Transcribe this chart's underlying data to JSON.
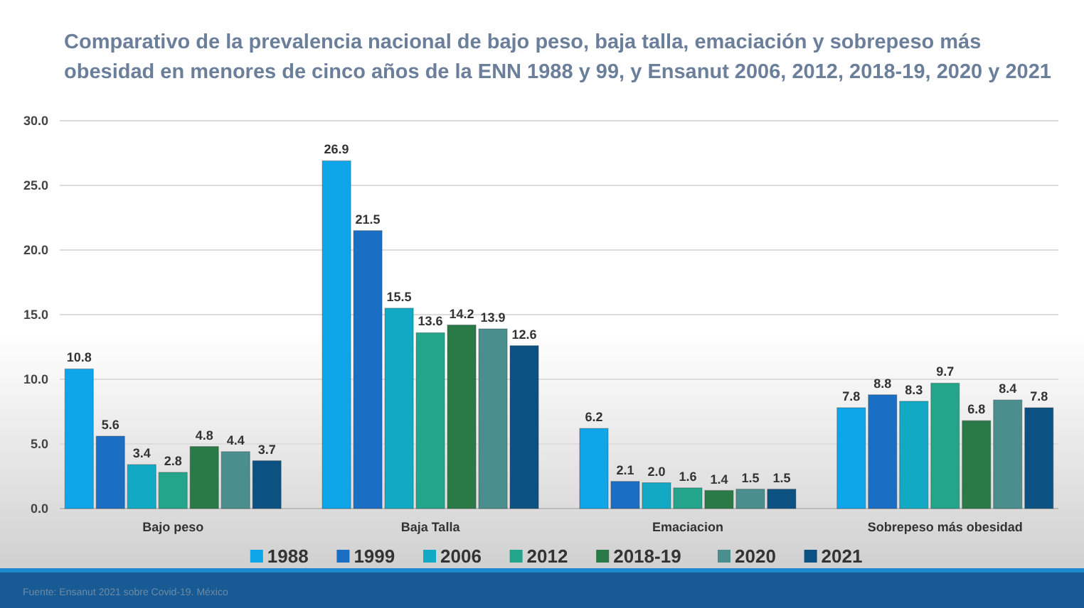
{
  "chart_data": {
    "type": "bar",
    "title": "Comparativo de la prevalencia nacional de bajo peso, baja talla, emaciación y sobrepeso más obesidad en menores de cinco años de la ENN 1988 y 99, y Ensanut 2006, 2012, 2018-19, 2020 y 2021",
    "categories": [
      "Bajo peso",
      "Baja Talla",
      "Emaciacion",
      "Sobrepeso más obesidad"
    ],
    "series": [
      {
        "name": "1988",
        "color": "#0ea5e9",
        "values": [
          10.8,
          26.9,
          6.2,
          7.8
        ]
      },
      {
        "name": "1999",
        "color": "#1a6fc4",
        "values": [
          5.6,
          21.5,
          2.1,
          8.8
        ]
      },
      {
        "name": "2006",
        "color": "#12a9c4",
        "values": [
          3.4,
          15.5,
          2.0,
          8.3
        ]
      },
      {
        "name": "2012",
        "color": "#22a58a",
        "values": [
          2.8,
          13.6,
          1.6,
          9.7
        ]
      },
      {
        "name": "2018-19",
        "color": "#2a7a48",
        "values": [
          4.8,
          14.2,
          1.4,
          6.8
        ]
      },
      {
        "name": "2020",
        "color": "#4a8e8e",
        "values": [
          4.4,
          13.9,
          1.5,
          8.4
        ]
      },
      {
        "name": "2021",
        "color": "#0b5282",
        "values": [
          3.7,
          12.6,
          1.5,
          7.8
        ]
      }
    ],
    "ylim": [
      0,
      30
    ],
    "yticks": [
      {
        "value": 0,
        "label": "0.0"
      },
      {
        "value": 5,
        "label": "5.0"
      },
      {
        "value": 10,
        "label": "10.0"
      },
      {
        "value": 15,
        "label": "15.0"
      },
      {
        "value": 20,
        "label": "20.0"
      },
      {
        "value": 25,
        "label": "25.0"
      },
      {
        "value": 30,
        "label": "30.0"
      }
    ],
    "grid": "y",
    "legend": "bottom",
    "value_labels": [
      [
        "10.8",
        "26.9",
        "6.2",
        "7.8"
      ],
      [
        "5.6",
        "21.5",
        "2.1",
        "8.8"
      ],
      [
        "3.4",
        "15.5",
        "2.0",
        "8.3"
      ],
      [
        "2.8",
        "13.6",
        "1.6",
        "9.7"
      ],
      [
        "4.8",
        "14.2",
        "1.4",
        "6.8"
      ],
      [
        "4.4",
        "13.9",
        "1.5",
        "8.4"
      ],
      [
        "3.7",
        "12.6",
        "1.5",
        "7.8"
      ]
    ],
    "annotations": [
      "Fuente: Ensanut 2021 sobre Covid-19. México"
    ]
  }
}
